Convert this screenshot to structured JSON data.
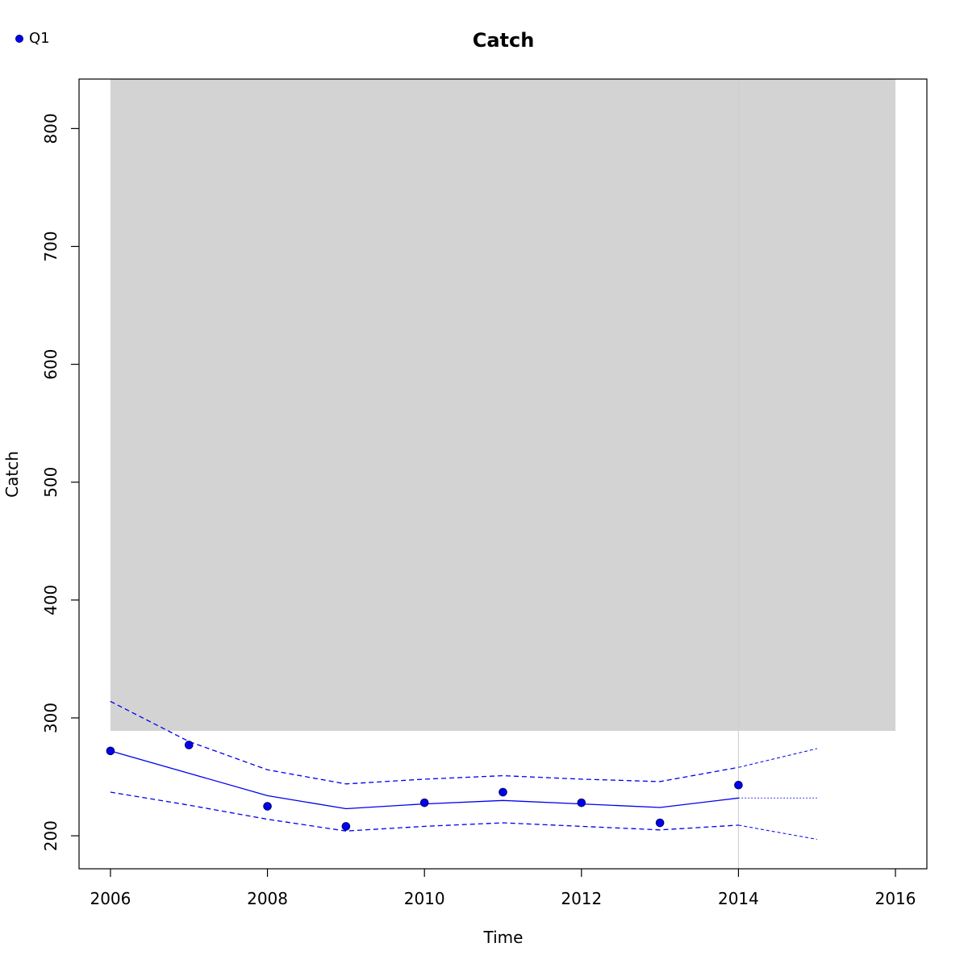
{
  "chart_data": {
    "type": "line",
    "title": "Catch",
    "xlabel": "Time",
    "ylabel": "Catch",
    "xlim": [
      2005.6,
      2016.4
    ],
    "ylim": [
      172,
      842
    ],
    "x_ticks": [
      2006,
      2008,
      2010,
      2012,
      2014,
      2016
    ],
    "x_tick_labels": [
      "2006",
      "2008",
      "2010",
      "2012",
      "2014",
      "2016"
    ],
    "y_ticks": [
      200,
      300,
      400,
      500,
      600,
      700,
      800
    ],
    "y_tick_labels": [
      "200",
      "300",
      "400",
      "500",
      "600",
      "700",
      "800"
    ],
    "legend": {
      "position": "top-left",
      "entries": [
        {
          "label": "Q1",
          "color": "#0000ee",
          "marker": "circle"
        }
      ]
    },
    "shaded_region": {
      "x": [
        2006,
        2016
      ],
      "y": [
        289,
        842
      ],
      "color": "#d3d3d3"
    },
    "vertical_line": {
      "x": 2014,
      "color": "#d0d0d0"
    },
    "series": [
      {
        "name": "Q1",
        "kind": "observed-points",
        "color": "#0000ee",
        "x": [
          2006,
          2007,
          2008,
          2009,
          2010,
          2011,
          2012,
          2013,
          2014
        ],
        "y": [
          272,
          277,
          225,
          208,
          228,
          237,
          228,
          211,
          243
        ]
      },
      {
        "kind": "fitted",
        "color": "#0000ee",
        "style": "solid",
        "x": [
          2006,
          2007,
          2008,
          2009,
          2010,
          2011,
          2012,
          2013,
          2014
        ],
        "y": [
          272,
          253,
          234,
          223,
          227,
          230,
          227,
          224,
          232
        ]
      },
      {
        "kind": "upper-ci",
        "color": "#0000ee",
        "style": "dashed",
        "x": [
          2006,
          2007,
          2008,
          2009,
          2010,
          2011,
          2012,
          2013,
          2014
        ],
        "y": [
          314,
          280,
          256,
          244,
          248,
          251,
          248,
          246,
          258
        ]
      },
      {
        "kind": "lower-ci",
        "color": "#0000ee",
        "style": "dashed",
        "x": [
          2006,
          2007,
          2008,
          2009,
          2010,
          2011,
          2012,
          2013,
          2014
        ],
        "y": [
          237,
          226,
          214,
          204,
          208,
          211,
          208,
          205,
          209
        ]
      },
      {
        "kind": "forecast",
        "color": "#0000ee",
        "style": "dotted",
        "x": [
          2014,
          2015
        ],
        "y": [
          232,
          232
        ]
      },
      {
        "kind": "forecast-upper",
        "color": "#0000ee",
        "style": "dashed-thin",
        "x": [
          2014,
          2015
        ],
        "y": [
          258,
          274
        ]
      },
      {
        "kind": "forecast-lower",
        "color": "#0000ee",
        "style": "dashed-thin",
        "x": [
          2014,
          2015
        ],
        "y": [
          209,
          197
        ]
      }
    ]
  }
}
